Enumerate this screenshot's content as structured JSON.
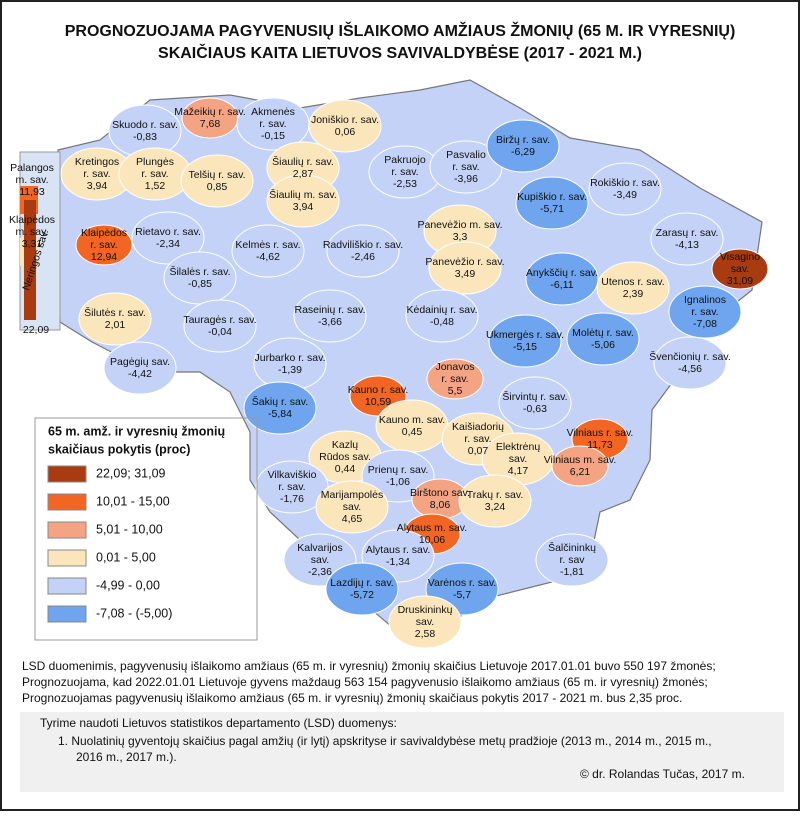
{
  "title": [
    "PROGNOZUOJAMA PAGYVENUSIŲ IŠLAIKOMO AMŽIAUS ŽMONIŲ (65 M. IR VYRESNIŲ)",
    "SKAIČIAUS KAITA LIETUVOS SAVIVALDYBĖSE (2017 - 2021 M.)"
  ],
  "legend": {
    "title": [
      "65 m. amž. ir vyresnių žmonių",
      "skaičiaus pokytis (proc)"
    ],
    "items": [
      {
        "label": "22,09; 31,09",
        "color": "#a83b10"
      },
      {
        "label": "10,01 - 15,00",
        "color": "#f26522"
      },
      {
        "label": "5,01 - 10,00",
        "color": "#f4a383"
      },
      {
        "label": "0,01 - 5,00",
        "color": "#fbe6bc"
      },
      {
        "label": "-4,99 - 0,00",
        "color": "#c3d2f6"
      },
      {
        "label": "-7,08 - (-5,00)",
        "color": "#6ea5ee"
      }
    ]
  },
  "regions": [
    {
      "name": [
        "Mažeikių r. sav."
      ],
      "value": "7,68",
      "class": 2
    },
    {
      "name": [
        "Akmenės",
        "r. sav."
      ],
      "value": "-0,15",
      "class": 4
    },
    {
      "name": [
        "Joniškio r. sav."
      ],
      "value": "0,06",
      "class": 3
    },
    {
      "name": [
        "Skuodo r. sav."
      ],
      "value": "-0,83",
      "class": 4
    },
    {
      "name": [
        "Palangos",
        "m. sav."
      ],
      "value": "11,93",
      "class": 1
    },
    {
      "name": [
        "Kretingos",
        "r. sav."
      ],
      "value": "3,94",
      "class": 3
    },
    {
      "name": [
        "Plungės",
        "r. sav."
      ],
      "value": "1,52",
      "class": 3
    },
    {
      "name": [
        "Telšių r. sav."
      ],
      "value": "0,85",
      "class": 3
    },
    {
      "name": [
        "Šiaulių r. sav."
      ],
      "value": "2,87",
      "class": 3
    },
    {
      "name": [
        "Šiaulių m. sav."
      ],
      "value": "3,94",
      "class": 3
    },
    {
      "name": [
        "Pakruojo",
        "r. sav."
      ],
      "value": "-2,53",
      "class": 4
    },
    {
      "name": [
        "Pasvalio",
        "r. sav."
      ],
      "value": "-3,96",
      "class": 4
    },
    {
      "name": [
        "Biržų r. sav."
      ],
      "value": "-6,29",
      "class": 5
    },
    {
      "name": [
        "Rokiškio r. sav."
      ],
      "value": "-3,49",
      "class": 4
    },
    {
      "name": [
        "Kupiškio r. sav."
      ],
      "value": "-5,71",
      "class": 5
    },
    {
      "name": [
        "Panevėžio m. sav."
      ],
      "value": "3,3",
      "class": 3
    },
    {
      "name": [
        "Panevėžio r. sav."
      ],
      "value": "3,49",
      "class": 3
    },
    {
      "name": [
        "Klaipėdos",
        "m. sav."
      ],
      "value": "3,31",
      "class": 3
    },
    {
      "name": [
        "Klaipėdos",
        "r. sav."
      ],
      "value": "12,94",
      "class": 1
    },
    {
      "name": [
        "Rietavo r. sav."
      ],
      "value": "-2,34",
      "class": 4
    },
    {
      "name": [
        "Kelmės r. sav."
      ],
      "value": "-4,62",
      "class": 4
    },
    {
      "name": [
        "Radviliškio r. sav."
      ],
      "value": "-2,46",
      "class": 4
    },
    {
      "name": [
        "Zarasų r. sav."
      ],
      "value": "-4,13",
      "class": 4
    },
    {
      "name": [
        "Visagino",
        "sav."
      ],
      "value": "31,09",
      "class": 0
    },
    {
      "name": [
        "Anykščių r. sav."
      ],
      "value": "-6,11",
      "class": 5
    },
    {
      "name": [
        "Utenos r. sav."
      ],
      "value": "2,39",
      "class": 3
    },
    {
      "name": [
        "Ignalinos",
        "r. sav."
      ],
      "value": "-7,08",
      "class": 5
    },
    {
      "name": [
        "Šilalės r. sav."
      ],
      "value": "-0,85",
      "class": 4
    },
    {
      "name": [
        "Neringos sav."
      ],
      "value": "22,09",
      "class": 0
    },
    {
      "name": [
        "Šilutės r. sav."
      ],
      "value": "2,01",
      "class": 3
    },
    {
      "name": [
        "Raseinių r. sav."
      ],
      "value": "-3,66",
      "class": 4
    },
    {
      "name": [
        "Kėdainių r. sav."
      ],
      "value": "-0,48",
      "class": 4
    },
    {
      "name": [
        "Tauragės r. sav."
      ],
      "value": "-0,04",
      "class": 4
    },
    {
      "name": [
        "Ukmergės r. sav."
      ],
      "value": "-5,15",
      "class": 5
    },
    {
      "name": [
        "Molėtų r. sav."
      ],
      "value": "-5,06",
      "class": 5
    },
    {
      "name": [
        "Švenčionių r. sav."
      ],
      "value": "-4,56",
      "class": 4
    },
    {
      "name": [
        "Pagėgių sav."
      ],
      "value": "-4,42",
      "class": 4
    },
    {
      "name": [
        "Jurbarko r. sav."
      ],
      "value": "-1,39",
      "class": 4
    },
    {
      "name": [
        "Jonavos",
        "r. sav."
      ],
      "value": "5,5",
      "class": 2
    },
    {
      "name": [
        "Kauno r. sav."
      ],
      "value": "10,59",
      "class": 1
    },
    {
      "name": [
        "Širvintų r. sav."
      ],
      "value": "-0,63",
      "class": 4
    },
    {
      "name": [
        "Šakių r. sav."
      ],
      "value": "-5,84",
      "class": 5
    },
    {
      "name": [
        "Kauno m. sav."
      ],
      "value": "0,45",
      "class": 3
    },
    {
      "name": [
        "Kaišiadorių",
        "r. sav."
      ],
      "value": "0,07",
      "class": 3
    },
    {
      "name": [
        "Vilniaus r. sav."
      ],
      "value": "11,73",
      "class": 1
    },
    {
      "name": [
        "Elektrėnų",
        "sav."
      ],
      "value": "4,17",
      "class": 3
    },
    {
      "name": [
        "Vilniaus m. sav."
      ],
      "value": "6,21",
      "class": 2
    },
    {
      "name": [
        "Kazlų",
        "Rūdos sav."
      ],
      "value": "0,44",
      "class": 3
    },
    {
      "name": [
        "Vilkaviškio",
        "r. sav."
      ],
      "value": "-1,76",
      "class": 4
    },
    {
      "name": [
        "Prienų r. sav."
      ],
      "value": "-1,06",
      "class": 4
    },
    {
      "name": [
        "Birštono sav."
      ],
      "value": "8,06",
      "class": 2
    },
    {
      "name": [
        "Marijampolės",
        "sav."
      ],
      "value": "4,65",
      "class": 3
    },
    {
      "name": [
        "Trakų r. sav."
      ],
      "value": "3,24",
      "class": 3
    },
    {
      "name": [
        "Alytaus m. sav."
      ],
      "value": "10,06",
      "class": 1
    },
    {
      "name": [
        "Kalvarijos",
        "sav."
      ],
      "value": "-2,36",
      "class": 4
    },
    {
      "name": [
        "Alytaus r. sav."
      ],
      "value": "-1,34",
      "class": 4
    },
    {
      "name": [
        "Šalčininkų",
        "r. sav"
      ],
      "value": "-1,81",
      "class": 4
    },
    {
      "name": [
        "Lazdijų r. sav."
      ],
      "value": "-5,72",
      "class": 5
    },
    {
      "name": [
        "Varėnos r. sav."
      ],
      "value": "-5,7",
      "class": 5
    },
    {
      "name": [
        "Druskininkų",
        "sav."
      ],
      "value": "2,58",
      "class": 3
    }
  ],
  "notes": [
    "LSD duomenimis, pagyvenusių išlaikomo amžiaus (65 m. ir vyresnių) žmonių skaičius Lietuvoje 2017.01.01 buvo 550 197 žmonės;",
    "Prognozuojama, kad 2022.01.01 Lietuvoje gyvens maždaug 563 154 pagyvenusio išlaikomo amžiaus (65 m. ir vyresnių) žmonės;",
    "Prognozuojamas pagyvenusių išlaikomo amžiaus (65 m. ir vyresnių) žmonių skaičiaus pokytis 2017 - 2021 m. bus 2,35 proc."
  ],
  "source": {
    "intro": "Tyrime naudoti Lietuvos statistikos departamento (LSD) duomenys:",
    "items": [
      "1. Nuolatinių gyventojų skaičius pagal amžių (ir lytį) apskrityse ir savivaldybėse metų pradžioje (2013 m., 2014 m., 2015 m.,",
      "2016 m., 2017 m.)."
    ],
    "credit": "© dr. Rolandas Tučas, 2017 m."
  }
}
